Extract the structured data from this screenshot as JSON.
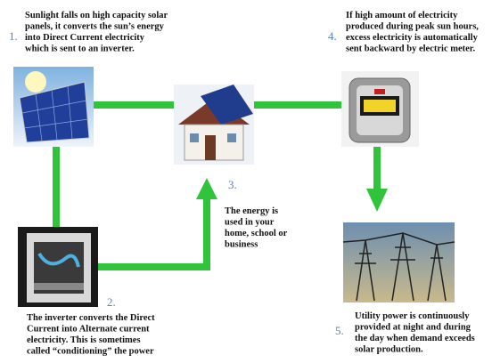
{
  "steps": [
    {
      "number": "1.",
      "lines": [
        "Sunlight falls on high capacity solar",
        "panels, it converts the sun’s energy",
        "into Direct Current electricity",
        "which is sent to an inverter."
      ]
    },
    {
      "number": "2.",
      "lines": [
        "The inverter converts the Direct",
        "Current into Alternate current",
        "electricity. This is sometimes",
        "called “conditioning” the power"
      ]
    },
    {
      "number": "3.",
      "lines": [
        "The energy is",
        "used in your",
        "home, school or",
        "business"
      ]
    },
    {
      "number": "4.",
      "lines": [
        "If high amount of electricity",
        "produced during peak sun hours,",
        "excess electricity is automatically",
        "sent backward by electric meter."
      ]
    },
    {
      "number": "5.",
      "lines": [
        "Utility power is continuously",
        "provided at night and during",
        "the day when demand exceeds",
        "solar production."
      ]
    }
  ]
}
